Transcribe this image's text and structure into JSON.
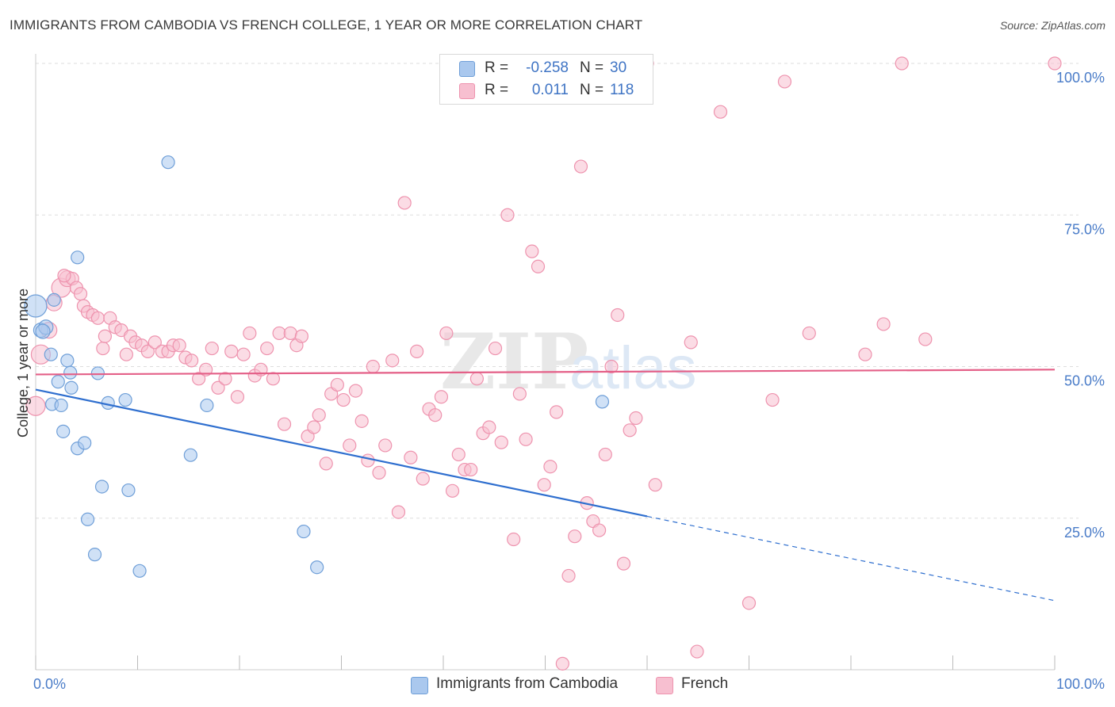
{
  "header": {
    "title": "IMMIGRANTS FROM CAMBODIA VS FRENCH COLLEGE, 1 YEAR OR MORE CORRELATION CHART",
    "source": "Source: ZipAtlas.com"
  },
  "legend": {
    "rows": [
      {
        "r_label": "R =",
        "r_value": "-0.258",
        "n_label": "N =",
        "n_value": "30"
      },
      {
        "r_label": "R =",
        "r_value": "0.011",
        "n_label": "N =",
        "n_value": "118"
      }
    ]
  },
  "bottom_legend": [
    "Immigrants from Cambodia",
    "French"
  ],
  "watermark": {
    "zip": "ZIP",
    "atlas": "atlas"
  },
  "colors": {
    "blue_fill": "#aac8ee",
    "blue_stroke": "#6f9fd8",
    "blue_line": "#2f6fcf",
    "pink_fill": "#f7bfd0",
    "pink_stroke": "#ee93ae",
    "pink_line": "#e46088",
    "grid": "#dddddd",
    "axis_label": "#4a7cc8"
  },
  "chart_data": {
    "type": "scatter",
    "title": "IMMIGRANTS FROM CAMBODIA VS FRENCH COLLEGE, 1 YEAR OR MORE CORRELATION CHART",
    "xlabel": "",
    "ylabel": "College, 1 year or more",
    "xlim": [
      0,
      100
    ],
    "ylim": [
      0,
      100
    ],
    "x_tick_labels": [
      "0.0%",
      "100.0%"
    ],
    "y_tick_labels": [
      "25.0%",
      "50.0%",
      "75.0%",
      "100.0%"
    ],
    "y_ticks": [
      25,
      50,
      75,
      100
    ],
    "x_minor_ticks": [
      0,
      10,
      20,
      30,
      40,
      50,
      60,
      70,
      80,
      90,
      100
    ],
    "series": [
      {
        "name": "Immigrants from Cambodia",
        "R": -0.258,
        "N": 30,
        "trend": {
          "x0": 0,
          "y0": 46.2,
          "x1": 60,
          "y1": 25.3,
          "dash_x1": 100,
          "dash_y1": 11.4
        },
        "points": [
          [
            0,
            60.0,
            14
          ],
          [
            0.5,
            56.0,
            9
          ],
          [
            1.0,
            56.5,
            9
          ],
          [
            1.5,
            52.0,
            8
          ],
          [
            1.6,
            43.8,
            8
          ],
          [
            1.8,
            61.0,
            8
          ],
          [
            2.2,
            47.5,
            8
          ],
          [
            2.5,
            43.6,
            8
          ],
          [
            2.7,
            39.3,
            8
          ],
          [
            3.1,
            51.0,
            8
          ],
          [
            3.4,
            49.0,
            8
          ],
          [
            3.5,
            46.5,
            8
          ],
          [
            4.1,
            68.0,
            8
          ],
          [
            4.1,
            36.5,
            8
          ],
          [
            4.8,
            37.4,
            8
          ],
          [
            5.1,
            24.8,
            8
          ],
          [
            5.8,
            19.0,
            8
          ],
          [
            6.1,
            48.9,
            8
          ],
          [
            6.5,
            30.2,
            8
          ],
          [
            7.1,
            44.0,
            8
          ],
          [
            8.8,
            44.5,
            8
          ],
          [
            9.1,
            29.6,
            8
          ],
          [
            10.2,
            16.3,
            8
          ],
          [
            13.0,
            83.7,
            8
          ],
          [
            15.2,
            35.4,
            8
          ],
          [
            16.8,
            43.6,
            8
          ],
          [
            26.3,
            22.8,
            8
          ],
          [
            27.6,
            16.9,
            8
          ],
          [
            55.6,
            44.2,
            8
          ],
          [
            0.7,
            55.8,
            9
          ]
        ]
      },
      {
        "name": "French",
        "R": 0.011,
        "N": 118,
        "trend": {
          "x0": 0,
          "y0": 48.7,
          "x1": 100,
          "y1": 49.5
        },
        "points": [
          [
            0,
            43.5,
            12
          ],
          [
            0.5,
            52.0,
            12
          ],
          [
            1.3,
            56.0,
            10
          ],
          [
            1.8,
            60.5,
            10
          ],
          [
            2.5,
            63.0,
            12
          ],
          [
            3.1,
            64.5,
            10
          ],
          [
            3.6,
            64.5,
            8
          ],
          [
            4.0,
            63.0,
            8
          ],
          [
            4.4,
            62.0,
            8
          ],
          [
            4.7,
            60.0,
            8
          ],
          [
            5.1,
            59.0,
            8
          ],
          [
            5.6,
            58.5,
            8
          ],
          [
            6.1,
            58.0,
            8
          ],
          [
            6.6,
            53.0,
            8
          ],
          [
            7.3,
            58.0,
            8
          ],
          [
            7.8,
            56.5,
            8
          ],
          [
            8.4,
            56.0,
            8
          ],
          [
            8.9,
            52.0,
            8
          ],
          [
            9.3,
            55.0,
            8
          ],
          [
            9.8,
            54.0,
            8
          ],
          [
            10.4,
            53.5,
            8
          ],
          [
            11.0,
            52.5,
            8
          ],
          [
            11.7,
            54.0,
            8
          ],
          [
            12.4,
            52.5,
            8
          ],
          [
            13.0,
            52.5,
            8
          ],
          [
            13.5,
            53.5,
            8
          ],
          [
            14.1,
            53.5,
            8
          ],
          [
            14.7,
            51.5,
            8
          ],
          [
            15.3,
            51.0,
            8
          ],
          [
            16.0,
            48.0,
            8
          ],
          [
            16.7,
            49.5,
            8
          ],
          [
            17.3,
            53.0,
            8
          ],
          [
            17.9,
            46.5,
            8
          ],
          [
            18.6,
            48.0,
            8
          ],
          [
            19.2,
            52.5,
            8
          ],
          [
            19.8,
            45.0,
            8
          ],
          [
            20.4,
            52.0,
            8
          ],
          [
            21.0,
            55.5,
            8
          ],
          [
            21.5,
            48.5,
            8
          ],
          [
            22.1,
            49.5,
            8
          ],
          [
            22.7,
            53.0,
            8
          ],
          [
            23.3,
            48.0,
            8
          ],
          [
            23.9,
            55.5,
            8
          ],
          [
            24.4,
            40.5,
            8
          ],
          [
            25.0,
            55.5,
            8
          ],
          [
            25.6,
            53.5,
            8
          ],
          [
            26.1,
            55.0,
            8
          ],
          [
            26.7,
            38.5,
            8
          ],
          [
            27.3,
            40.0,
            8
          ],
          [
            27.8,
            42.0,
            8
          ],
          [
            28.5,
            34.0,
            8
          ],
          [
            29.0,
            45.5,
            8
          ],
          [
            29.6,
            47.0,
            8
          ],
          [
            30.2,
            44.5,
            8
          ],
          [
            30.8,
            37.0,
            8
          ],
          [
            31.4,
            46.0,
            8
          ],
          [
            32.0,
            41.0,
            8
          ],
          [
            32.6,
            34.5,
            8
          ],
          [
            33.1,
            50.0,
            8
          ],
          [
            33.7,
            32.5,
            8
          ],
          [
            34.3,
            37.0,
            8
          ],
          [
            35.0,
            51.0,
            8
          ],
          [
            35.6,
            26.0,
            8
          ],
          [
            36.2,
            77.0,
            8
          ],
          [
            36.8,
            35.0,
            8
          ],
          [
            37.4,
            52.5,
            8
          ],
          [
            38.0,
            31.5,
            8
          ],
          [
            38.6,
            43.0,
            8
          ],
          [
            39.2,
            42.0,
            8
          ],
          [
            39.8,
            45.0,
            8
          ],
          [
            40.3,
            55.5,
            8
          ],
          [
            40.9,
            29.5,
            8
          ],
          [
            41.5,
            35.5,
            8
          ],
          [
            42.1,
            33.0,
            8
          ],
          [
            42.7,
            33.0,
            8
          ],
          [
            43.3,
            48.0,
            8
          ],
          [
            43.9,
            39.0,
            8
          ],
          [
            44.5,
            40.0,
            8
          ],
          [
            45.1,
            53.0,
            8
          ],
          [
            45.7,
            37.5,
            8
          ],
          [
            46.3,
            75.0,
            8
          ],
          [
            46.9,
            21.5,
            8
          ],
          [
            47.5,
            45.5,
            8
          ],
          [
            48.1,
            38.0,
            8
          ],
          [
            48.7,
            69.0,
            8
          ],
          [
            49.3,
            66.5,
            8
          ],
          [
            49.9,
            30.5,
            8
          ],
          [
            50.5,
            33.5,
            8
          ],
          [
            51.1,
            42.5,
            8
          ],
          [
            51.7,
            1.0,
            8
          ],
          [
            52.3,
            15.5,
            8
          ],
          [
            52.9,
            22.0,
            8
          ],
          [
            53.5,
            83.0,
            8
          ],
          [
            54.1,
            27.5,
            8
          ],
          [
            54.7,
            24.5,
            8
          ],
          [
            55.3,
            23.0,
            8
          ],
          [
            55.9,
            35.5,
            8
          ],
          [
            56.5,
            50.0,
            8
          ],
          [
            57.1,
            58.5,
            8
          ],
          [
            57.7,
            17.5,
            8
          ],
          [
            58.3,
            39.5,
            8
          ],
          [
            58.9,
            41.5,
            8
          ],
          [
            60.0,
            100.0,
            8
          ],
          [
            60.8,
            30.5,
            8
          ],
          [
            64.3,
            54.0,
            8
          ],
          [
            64.9,
            3.0,
            8
          ],
          [
            67.2,
            92.0,
            8
          ],
          [
            70.0,
            11.0,
            8
          ],
          [
            72.3,
            44.5,
            8
          ],
          [
            73.5,
            97.0,
            8
          ],
          [
            75.9,
            55.5,
            8
          ],
          [
            81.4,
            52.0,
            8
          ],
          [
            83.2,
            57.0,
            8
          ],
          [
            85.0,
            100.0,
            8
          ],
          [
            87.3,
            54.5,
            8
          ],
          [
            100.0,
            100.0,
            8
          ],
          [
            2.8,
            65.0,
            8
          ],
          [
            6.8,
            55.0,
            8
          ]
        ]
      }
    ]
  }
}
